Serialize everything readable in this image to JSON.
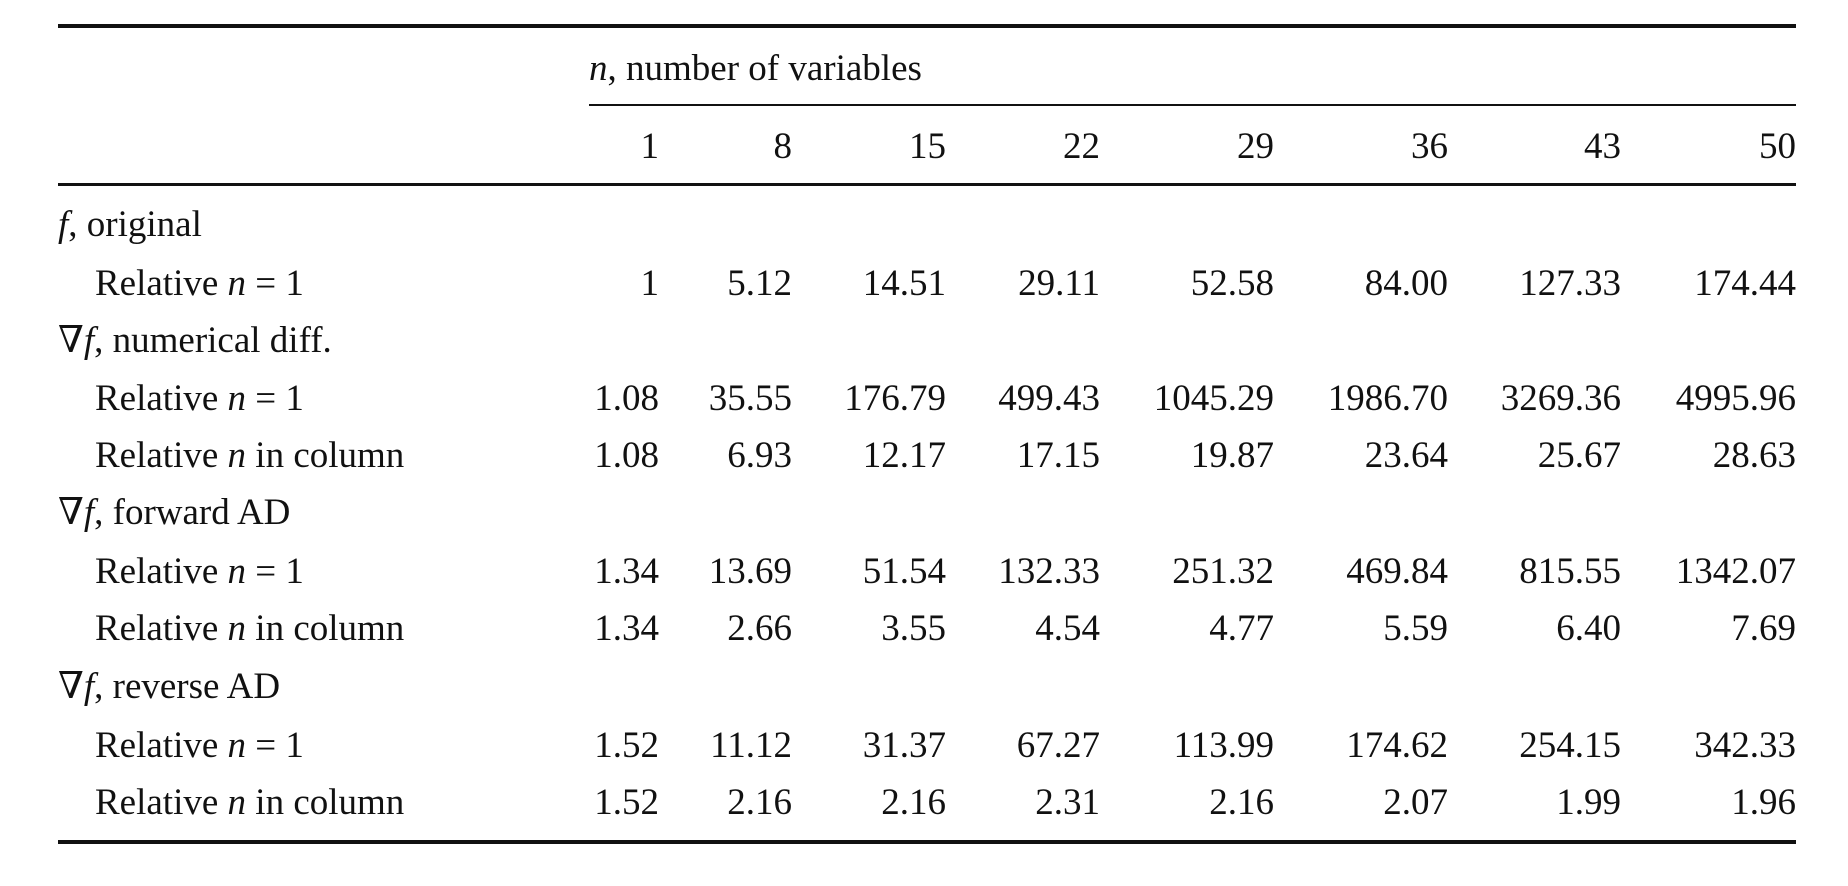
{
  "table": {
    "spanner": [
      {
        "text": "n",
        "italic": true
      },
      {
        "text": ", number of variables"
      }
    ],
    "columns": [
      "1",
      "8",
      "15",
      "22",
      "29",
      "36",
      "43",
      "50"
    ],
    "groups": [
      {
        "label": [
          {
            "text": "f",
            "italic": true
          },
          {
            "text": ", original"
          }
        ],
        "rows": [
          {
            "label": [
              {
                "text": "Relative "
              },
              {
                "text": "n",
                "italic": true
              },
              {
                "text": " = 1"
              }
            ],
            "values": [
              "1",
              "5.12",
              "14.51",
              "29.11",
              "52.58",
              "84.00",
              "127.33",
              "174.44"
            ]
          }
        ]
      },
      {
        "label": [
          {
            "text": "∇"
          },
          {
            "text": "f",
            "italic": true
          },
          {
            "text": ", numerical diff."
          }
        ],
        "rows": [
          {
            "label": [
              {
                "text": "Relative "
              },
              {
                "text": "n",
                "italic": true
              },
              {
                "text": " = 1"
              }
            ],
            "values": [
              "1.08",
              "35.55",
              "176.79",
              "499.43",
              "1045.29",
              "1986.70",
              "3269.36",
              "4995.96"
            ]
          },
          {
            "label": [
              {
                "text": "Relative "
              },
              {
                "text": "n",
                "italic": true
              },
              {
                "text": " in column"
              }
            ],
            "values": [
              "1.08",
              "6.93",
              "12.17",
              "17.15",
              "19.87",
              "23.64",
              "25.67",
              "28.63"
            ]
          }
        ]
      },
      {
        "label": [
          {
            "text": "∇"
          },
          {
            "text": "f",
            "italic": true
          },
          {
            "text": ", forward AD"
          }
        ],
        "rows": [
          {
            "label": [
              {
                "text": "Relative "
              },
              {
                "text": "n",
                "italic": true
              },
              {
                "text": " = 1"
              }
            ],
            "values": [
              "1.34",
              "13.69",
              "51.54",
              "132.33",
              "251.32",
              "469.84",
              "815.55",
              "1342.07"
            ]
          },
          {
            "label": [
              {
                "text": "Relative "
              },
              {
                "text": "n",
                "italic": true
              },
              {
                "text": " in column"
              }
            ],
            "values": [
              "1.34",
              "2.66",
              "3.55",
              "4.54",
              "4.77",
              "5.59",
              "6.40",
              "7.69"
            ]
          }
        ]
      },
      {
        "label": [
          {
            "text": "∇"
          },
          {
            "text": "f",
            "italic": true
          },
          {
            "text": ", reverse AD"
          }
        ],
        "rows": [
          {
            "label": [
              {
                "text": "Relative "
              },
              {
                "text": "n",
                "italic": true
              },
              {
                "text": " = 1"
              }
            ],
            "values": [
              "1.52",
              "11.12",
              "31.37",
              "67.27",
              "113.99",
              "174.62",
              "254.15",
              "342.33"
            ]
          },
          {
            "label": [
              {
                "text": "Relative "
              },
              {
                "text": "n",
                "italic": true
              },
              {
                "text": " in column"
              }
            ],
            "values": [
              "1.52",
              "2.16",
              "2.16",
              "2.31",
              "2.16",
              "2.07",
              "1.99",
              "1.96"
            ]
          }
        ]
      }
    ]
  }
}
